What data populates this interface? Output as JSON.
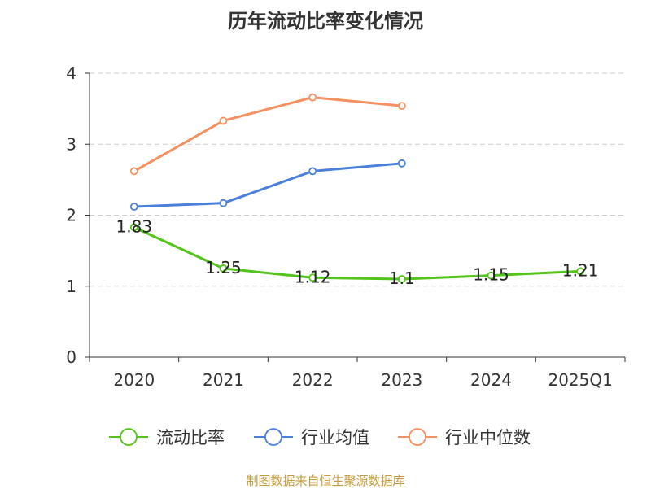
{
  "title": "历年流动比率变化情况",
  "source": "制图数据来自恒生聚源数据库",
  "colors": {
    "current_ratio": "#52c41a",
    "industry_avg": "#4a7fdb",
    "industry_median": "#f59060",
    "grid": "#cccccc",
    "axis": "#333333",
    "source": "#c49a3a"
  },
  "chart_data": {
    "type": "line",
    "title": "历年流动比率变化情况",
    "categories": [
      "2020",
      "2021",
      "2022",
      "2023",
      "2024",
      "2025Q1"
    ],
    "ylim": [
      0,
      4
    ],
    "yticks": [
      0,
      1,
      2,
      3,
      4
    ],
    "grid": "horizontal-dashed",
    "legend_position": "bottom",
    "series": [
      {
        "name": "流动比率",
        "color": "#52c41a",
        "values": [
          1.83,
          1.25,
          1.12,
          1.1,
          1.15,
          1.21
        ],
        "labels": [
          "1.83",
          "1.25",
          "1.12",
          "1.1",
          "1.15",
          "1.21"
        ],
        "show_labels": true
      },
      {
        "name": "行业均值",
        "color": "#4a7fdb",
        "values": [
          2.12,
          2.17,
          2.62,
          2.73,
          null,
          null
        ],
        "show_labels": false
      },
      {
        "name": "行业中位数",
        "color": "#f59060",
        "values": [
          2.62,
          3.33,
          3.66,
          3.54,
          null,
          null
        ],
        "show_labels": false
      }
    ]
  }
}
